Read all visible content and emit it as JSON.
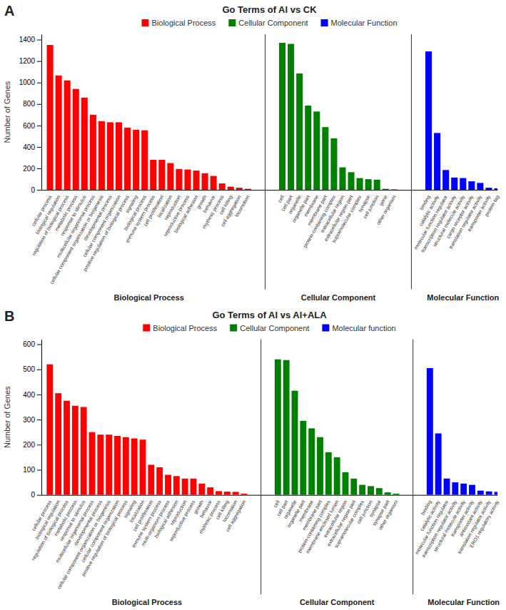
{
  "chart_data": [
    {
      "type": "bar",
      "panel_label": "A",
      "title": "Go Terms of Al vs CK",
      "ylabel": "Number of Genes",
      "series": [
        {
          "name": "Biological Process",
          "color": "#FF0000",
          "categories": [
            "cellular process",
            "biological regulation",
            "regulation of biological process",
            "metabolic process",
            "response to stimulus",
            "multicellular organismal process",
            "cellular component organization or biogenesis",
            "developmental process",
            "cellular component organization",
            "positive regulation of biological process",
            "signaling",
            "biological process",
            "immune system process",
            "cell proliferation",
            "localization",
            "reproduction",
            "reproductive process",
            "biological adhesion",
            "growth",
            "behavior",
            "rhythmic process",
            "cell killing",
            "cell aggregation",
            "locomotion"
          ],
          "values": [
            1350,
            1065,
            1020,
            940,
            860,
            700,
            640,
            630,
            630,
            580,
            560,
            555,
            280,
            280,
            250,
            195,
            190,
            180,
            155,
            130,
            60,
            30,
            20,
            10
          ]
        },
        {
          "name": "Cellular Component",
          "color": "#008000",
          "categories": [
            "cell",
            "cell part",
            "organelle",
            "organelle part",
            "membrane",
            "membrane part",
            "protein-containing complex",
            "extracellular region",
            "extracellular region part",
            "supramolecular complex",
            "synapse",
            "cell junction",
            "gene",
            "other organism"
          ],
          "values": [
            1370,
            1360,
            1085,
            785,
            730,
            585,
            480,
            210,
            165,
            110,
            100,
            95,
            10,
            5
          ]
        },
        {
          "name": "Molecular Function",
          "color": "#0000FF",
          "categories": [
            "binding",
            "catalytic activity",
            "molecular function regulator",
            "transcription regulator activity",
            "structural molecule activity",
            "cargo receptor activity",
            "translation regulator activity",
            "transporter activity",
            "protein tag"
          ],
          "values": [
            1290,
            530,
            185,
            115,
            110,
            80,
            65,
            20,
            15
          ]
        }
      ],
      "annotations": [
        "Biological Process",
        "Cellular Component",
        "Molecular Function"
      ],
      "ylim": [
        0,
        1450
      ],
      "yticks": [
        0,
        200,
        400,
        600,
        800,
        1000,
        1200,
        1400
      ],
      "legend": "top",
      "grid": false
    },
    {
      "type": "bar",
      "panel_label": "B",
      "title": "Go Terms of Al vs Al+ALA",
      "ylabel": "Number of Genes",
      "series": [
        {
          "name": "Biological Process",
          "color": "#FF0000",
          "categories": [
            "cellular process",
            "biological regulation",
            "regulation of biological process",
            "metabolic process",
            "response to stimulus",
            "multicellular organismal process",
            "developmental process",
            "cellular component organization or biogenesis",
            "cellular component organization",
            "positive regulation of biological process",
            "signaling",
            "localization",
            "cell proliferation",
            "immune system process",
            "multi-organism process",
            "biological adhesion",
            "reproduction",
            "reproductive process",
            "growth",
            "behavior",
            "rhythmic process",
            "cell killing",
            "locomotion",
            "cell aggregation"
          ],
          "values": [
            520,
            405,
            375,
            355,
            350,
            250,
            240,
            240,
            235,
            230,
            225,
            220,
            120,
            110,
            80,
            75,
            65,
            65,
            45,
            30,
            15,
            13,
            12,
            5
          ]
        },
        {
          "name": "Cellular Component",
          "color": "#008000",
          "categories": [
            "cell",
            "cell part",
            "organelle",
            "organelle part",
            "membrane",
            "membrane part",
            "protein-containing complex",
            "membrane-enclosed lumen",
            "extracellular region",
            "extracellular region part",
            "supramolecular complex",
            "cell junction",
            "synapse",
            "synapse part",
            "other organism"
          ],
          "values": [
            540,
            537,
            415,
            295,
            265,
            230,
            170,
            150,
            90,
            65,
            40,
            35,
            27,
            10,
            5
          ]
        },
        {
          "name": "Molecular function",
          "color": "#0000FF",
          "categories": [
            "binding",
            "catalytic activity",
            "molecular function regulator",
            "transcription regulator activity",
            "structural molecule activity",
            "transporter activity",
            "antioxidant activity",
            "translation regulator activity",
            "ERO1 regulatory activity"
          ],
          "values": [
            505,
            245,
            65,
            50,
            45,
            40,
            17,
            14,
            12
          ]
        }
      ],
      "annotations": [
        "Biological Process",
        "Cellular Component",
        "Molecular Function"
      ],
      "ylim": [
        0,
        620
      ],
      "yticks": [
        0,
        100,
        200,
        300,
        400,
        500,
        600
      ],
      "legend": "top",
      "grid": false
    }
  ]
}
